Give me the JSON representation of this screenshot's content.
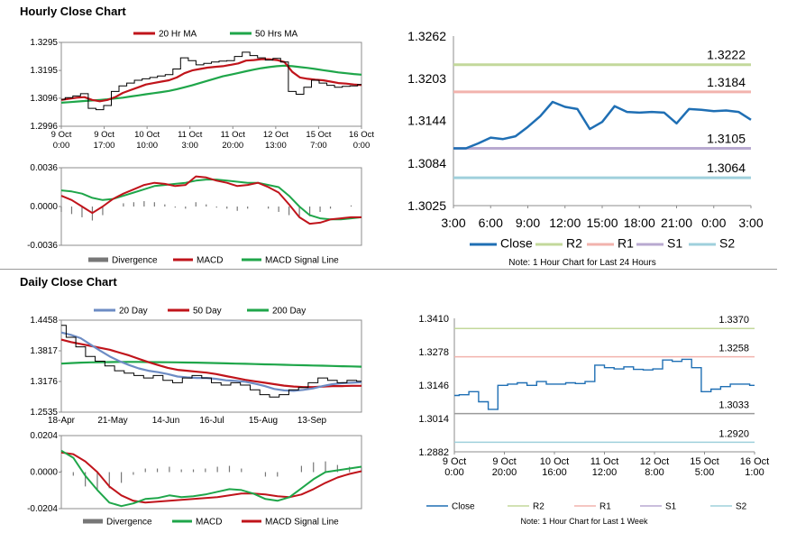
{
  "sections": {
    "hourly_title": "Hourly Close Chart",
    "daily_title": "Daily Close Chart"
  },
  "colors": {
    "ma20": "#c0141b",
    "ma50": "#1fa64a",
    "close": "#1f6fb4",
    "r2": "#c3d89b",
    "r1": "#f2b3ad",
    "s1": "#b8a9d0",
    "s2": "#9fd0dc",
    "divergence": "#777777",
    "macd_red": "#c0141b",
    "signal_green": "#1fa64a",
    "ma200": "#1fa64a",
    "ma20_blue": "#6d8cc4"
  },
  "chart_data": [
    {
      "id": "hourly_price",
      "type": "line",
      "title": "Hourly Close Chart",
      "legend": [
        "20 Hr MA",
        "50 Hrs MA"
      ],
      "x_ticks": [
        "9 Oct\n0:00",
        "9 Oct\n17:00",
        "10 Oct\n10:00",
        "11 Oct\n3:00",
        "11 Oct\n20:00",
        "12 Oct\n13:00",
        "15 Oct\n7:00",
        "16 Oct\n0:00"
      ],
      "y_ticks": [
        "1.3295",
        "1.3195",
        "1.3096",
        "1.2996"
      ],
      "ylim": [
        1.2996,
        1.3295
      ],
      "series": [
        {
          "name": "Close",
          "values": [
            1.3092,
            1.3098,
            1.3104,
            1.3112,
            1.306,
            1.3055,
            1.307,
            1.312,
            1.314,
            1.315,
            1.316,
            1.3165,
            1.317,
            1.3175,
            1.318,
            1.32,
            1.324,
            1.323,
            1.3215,
            1.322,
            1.3225,
            1.3228,
            1.323,
            1.3245,
            1.326,
            1.3248,
            1.324,
            1.3232,
            1.3238,
            1.3225,
            1.312,
            1.311,
            1.3135,
            1.316,
            1.315,
            1.3142,
            1.3135,
            1.3138,
            1.314,
            1.3145
          ]
        },
        {
          "name": "20 Hr MA",
          "values": [
            1.309,
            1.3094,
            1.3098,
            1.31,
            1.309,
            1.3085,
            1.309,
            1.31,
            1.3115,
            1.3125,
            1.3135,
            1.3145,
            1.315,
            1.3155,
            1.316,
            1.317,
            1.3185,
            1.3195,
            1.32,
            1.3205,
            1.3208,
            1.321,
            1.3215,
            1.322,
            1.323,
            1.3232,
            1.3235,
            1.3235,
            1.3232,
            1.3225,
            1.319,
            1.317,
            1.3165,
            1.3162,
            1.316,
            1.3155,
            1.315,
            1.3148,
            1.3145,
            1.3143
          ]
        },
        {
          "name": "50 Hrs MA",
          "values": [
            1.308,
            1.3082,
            1.3084,
            1.3086,
            1.3088,
            1.309,
            1.3092,
            1.3095,
            1.3098,
            1.3102,
            1.3106,
            1.311,
            1.3114,
            1.3118,
            1.3122,
            1.3128,
            1.3135,
            1.3142,
            1.315,
            1.3158,
            1.3166,
            1.3174,
            1.318,
            1.3186,
            1.3192,
            1.3198,
            1.3203,
            1.3207,
            1.321,
            1.3212,
            1.321,
            1.3207,
            1.3204,
            1.32,
            1.3196,
            1.3192,
            1.3188,
            1.3185,
            1.3182,
            1.318
          ]
        }
      ]
    },
    {
      "id": "hourly_macd",
      "type": "line",
      "legend": [
        "Divergence",
        "MACD",
        "MACD Signal Line"
      ],
      "y_ticks": [
        "0.0036",
        "0.0000",
        "-0.0036"
      ],
      "ylim": [
        -0.0036,
        0.0036
      ],
      "series": [
        {
          "name": "MACD",
          "values": [
            0.001,
            0.0006,
            0.0,
            -0.0006,
            0.0,
            0.0007,
            0.0012,
            0.0016,
            0.002,
            0.0022,
            0.0021,
            0.0019,
            0.002,
            0.0028,
            0.0027,
            0.0024,
            0.0022,
            0.0019,
            0.002,
            0.0022,
            0.0018,
            0.0013,
            0.0002,
            -0.001,
            -0.0016,
            -0.0015,
            -0.0012,
            -0.0011,
            -0.001,
            -0.001
          ]
        },
        {
          "name": "MACD Signal Line",
          "values": [
            0.0015,
            0.0014,
            0.0012,
            0.0008,
            0.0006,
            0.0007,
            0.001,
            0.0013,
            0.0016,
            0.0019,
            0.002,
            0.0021,
            0.0022,
            0.0024,
            0.0025,
            0.0025,
            0.0024,
            0.0023,
            0.0022,
            0.0022,
            0.002,
            0.0018,
            0.001,
            0.0,
            -0.0008,
            -0.0011,
            -0.0012,
            -0.0012,
            -0.0011,
            -0.001
          ]
        },
        {
          "name": "Divergence",
          "values": [
            -0.0005,
            -0.0007,
            -0.001,
            -0.0013,
            -0.0008,
            0.0,
            0.0003,
            0.0004,
            0.0005,
            0.0004,
            0.0002,
            -0.0001,
            -0.0002,
            0.0004,
            0.0002,
            -0.0001,
            -0.0002,
            -0.0004,
            -0.0002,
            0.0,
            -0.0002,
            -0.0005,
            -0.0008,
            -0.001,
            -0.0009,
            -0.0005,
            -0.0002,
            0.0,
            0.0001,
            0.0
          ]
        }
      ]
    },
    {
      "id": "hourly_levels",
      "type": "line",
      "note": "Note: 1 Hour Chart for Last 24 Hours",
      "x_ticks": [
        "3:00",
        "6:00",
        "9:00",
        "12:00",
        "15:00",
        "18:00",
        "21:00",
        "0:00",
        "3:00"
      ],
      "y_ticks": [
        "1.3262",
        "1.3203",
        "1.3144",
        "1.3084",
        "1.3025"
      ],
      "ylim": [
        1.3025,
        1.3262
      ],
      "levels": {
        "R2": 1.3222,
        "R1": 1.3184,
        "S1": 1.3105,
        "S2": 1.3064
      },
      "level_labels": [
        "1.3222",
        "1.3184",
        "1.3105",
        "1.3064"
      ],
      "legend": [
        "Close",
        "R2",
        "R1",
        "S1",
        "S2"
      ],
      "series": [
        {
          "name": "Close",
          "values": [
            1.3105,
            1.3105,
            1.3112,
            1.312,
            1.3118,
            1.3122,
            1.3135,
            1.315,
            1.317,
            1.3163,
            1.316,
            1.3132,
            1.3142,
            1.3164,
            1.3156,
            1.3155,
            1.3156,
            1.3155,
            1.314,
            1.316,
            1.3159,
            1.3157,
            1.3158,
            1.3156,
            1.3145
          ]
        }
      ]
    },
    {
      "id": "daily_price",
      "type": "line",
      "title": "Daily Close Chart",
      "legend": [
        "20 Day",
        "50 Day",
        "200 Day"
      ],
      "x_ticks": [
        "18-Apr",
        "21-May",
        "14-Jun",
        "16-Jul",
        "15-Aug",
        "13-Sep"
      ],
      "y_ticks": [
        "1.4458",
        "1.3817",
        "1.3176",
        "1.2535"
      ],
      "ylim": [
        1.2535,
        1.4458
      ],
      "series": [
        {
          "name": "Close",
          "values": [
            1.435,
            1.41,
            1.39,
            1.37,
            1.36,
            1.35,
            1.34,
            1.335,
            1.33,
            1.325,
            1.33,
            1.32,
            1.315,
            1.325,
            1.33,
            1.325,
            1.315,
            1.31,
            1.315,
            1.31,
            1.3,
            1.29,
            1.285,
            1.29,
            1.3,
            1.305,
            1.315,
            1.325,
            1.32,
            1.315,
            1.32,
            1.318
          ]
        },
        {
          "name": "20 Day",
          "values": [
            1.42,
            1.415,
            1.408,
            1.395,
            1.382,
            1.37,
            1.36,
            1.352,
            1.345,
            1.34,
            1.337,
            1.333,
            1.328,
            1.326,
            1.325,
            1.325,
            1.323,
            1.32,
            1.319,
            1.317,
            1.313,
            1.308,
            1.302,
            1.299,
            1.298,
            1.3,
            1.303,
            1.308,
            1.312,
            1.314,
            1.315,
            1.316
          ]
        },
        {
          "name": "50 Day",
          "values": [
            1.405,
            1.4,
            1.396,
            1.392,
            1.388,
            1.384,
            1.378,
            1.372,
            1.365,
            1.358,
            1.352,
            1.346,
            1.342,
            1.34,
            1.338,
            1.336,
            1.333,
            1.329,
            1.325,
            1.321,
            1.318,
            1.315,
            1.312,
            1.309,
            1.307,
            1.306,
            1.306,
            1.307,
            1.308,
            1.308,
            1.3085,
            1.3085
          ]
        },
        {
          "name": "200 Day",
          "values": [
            1.355,
            1.356,
            1.357,
            1.3575,
            1.358,
            1.3582,
            1.3585,
            1.3585,
            1.3585,
            1.3582,
            1.358,
            1.3578,
            1.3575,
            1.3572,
            1.357,
            1.3565,
            1.356,
            1.3555,
            1.355,
            1.3545,
            1.354,
            1.3535,
            1.353,
            1.3525,
            1.352,
            1.3515,
            1.351,
            1.3505,
            1.35,
            1.3495,
            1.349,
            1.3485
          ]
        }
      ]
    },
    {
      "id": "daily_macd",
      "type": "line",
      "legend": [
        "Divergence",
        "MACD",
        "MACD Signal Line"
      ],
      "y_ticks": [
        "0.0204",
        "0.0000",
        "-0.0204"
      ],
      "ylim": [
        -0.0204,
        0.0204
      ],
      "series": [
        {
          "name": "MACD",
          "values": [
            0.012,
            0.008,
            -0.002,
            -0.01,
            -0.017,
            -0.019,
            -0.0175,
            -0.015,
            -0.0145,
            -0.013,
            -0.014,
            -0.0135,
            -0.0125,
            -0.011,
            -0.0095,
            -0.01,
            -0.012,
            -0.015,
            -0.016,
            -0.014,
            -0.009,
            -0.004,
            0.0,
            0.001,
            0.002,
            0.003
          ]
        },
        {
          "name": "MACD Signal Line",
          "values": [
            0.011,
            0.01,
            0.006,
            0.0,
            -0.008,
            -0.013,
            -0.016,
            -0.017,
            -0.0165,
            -0.016,
            -0.0155,
            -0.015,
            -0.0145,
            -0.014,
            -0.013,
            -0.012,
            -0.012,
            -0.0125,
            -0.0135,
            -0.014,
            -0.0125,
            -0.0095,
            -0.006,
            -0.003,
            -0.001,
            0.0005
          ]
        },
        {
          "name": "Divergence",
          "values": [
            0.001,
            -0.002,
            -0.008,
            -0.01,
            -0.009,
            -0.006,
            -0.0015,
            0.002,
            0.002,
            0.003,
            0.0015,
            0.0015,
            0.002,
            0.003,
            0.0035,
            0.002,
            0.0,
            -0.0025,
            -0.0025,
            0.0,
            0.0035,
            0.0055,
            0.006,
            0.004,
            0.003,
            0.0025
          ]
        }
      ]
    },
    {
      "id": "daily_levels",
      "type": "line",
      "note": "Note: 1 Hour Chart for Last 1 Week",
      "x_ticks": [
        "9 Oct\n0:00",
        "9 Oct\n20:00",
        "10 Oct\n16:00",
        "11 Oct\n12:00",
        "12 Oct\n8:00",
        "15 Oct\n5:00",
        "16 Oct\n1:00"
      ],
      "y_ticks": [
        "1.3410",
        "1.3278",
        "1.3146",
        "1.3014",
        "1.2882"
      ],
      "ylim": [
        1.2882,
        1.341
      ],
      "levels": {
        "R2": 1.337,
        "R1": 1.3258,
        "S1": 1.3033,
        "S2": 1.292
      },
      "level_labels": [
        "1.3370",
        "1.3258",
        "1.3033",
        "1.2920"
      ],
      "legend": [
        "Close",
        "R2",
        "R1",
        "S1",
        "S2"
      ],
      "series": [
        {
          "name": "Close",
          "values": [
            1.3105,
            1.3108,
            1.312,
            1.308,
            1.305,
            1.3145,
            1.315,
            1.3155,
            1.3145,
            1.316,
            1.315,
            1.315,
            1.3155,
            1.3152,
            1.316,
            1.3225,
            1.3215,
            1.321,
            1.3218,
            1.3208,
            1.3206,
            1.321,
            1.3245,
            1.324,
            1.3248,
            1.3215,
            1.312,
            1.313,
            1.314,
            1.315,
            1.315,
            1.3145
          ]
        }
      ]
    }
  ]
}
